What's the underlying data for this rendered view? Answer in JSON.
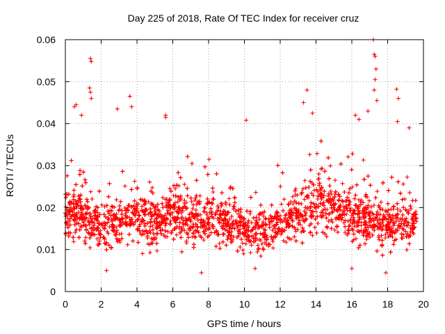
{
  "chart_data": {
    "type": "scatter",
    "title": "Day 225 of 2018, Rate Of TEC Index for receiver cruz",
    "xlabel": "GPS time / hours",
    "ylabel": "ROTI / TECUs",
    "xlim": [
      0,
      20
    ],
    "ylim": [
      0,
      0.06
    ],
    "x_ticks": [
      0,
      2,
      4,
      6,
      8,
      10,
      12,
      14,
      16,
      18,
      20
    ],
    "x_tick_labels": [
      "0",
      "2",
      "4",
      "6",
      "8",
      "10",
      "12",
      "14",
      "16",
      "18",
      "20"
    ],
    "y_ticks": [
      0,
      0.01,
      0.02,
      0.03,
      0.04,
      0.05,
      0.06
    ],
    "y_tick_labels": [
      "0",
      "0.01",
      "0.02",
      "0.03",
      "0.04",
      "0.05",
      "0.06"
    ],
    "grid": true,
    "marker": "+",
    "color": "#ff0000",
    "density_profile": {
      "description": "Approximate median ROTI and spread per hour (dense scatter of several thousand points)",
      "hours": [
        0,
        1,
        2,
        3,
        4,
        5,
        6,
        7,
        8,
        9,
        10,
        11,
        12,
        13,
        14,
        15,
        16,
        17,
        18,
        19,
        19.6
      ],
      "median": [
        0.019,
        0.019,
        0.015,
        0.017,
        0.017,
        0.017,
        0.018,
        0.017,
        0.017,
        0.017,
        0.015,
        0.014,
        0.016,
        0.019,
        0.021,
        0.02,
        0.018,
        0.017,
        0.016,
        0.016,
        0.017
      ],
      "spread": [
        0.005,
        0.005,
        0.004,
        0.005,
        0.005,
        0.005,
        0.005,
        0.005,
        0.005,
        0.005,
        0.004,
        0.004,
        0.004,
        0.005,
        0.006,
        0.005,
        0.005,
        0.005,
        0.004,
        0.004,
        0.004
      ]
    },
    "notable_points": [
      {
        "x": 0.5,
        "y": 0.044
      },
      {
        "x": 0.6,
        "y": 0.0445
      },
      {
        "x": 0.9,
        "y": 0.042
      },
      {
        "x": 1.4,
        "y": 0.0555
      },
      {
        "x": 1.45,
        "y": 0.0548
      },
      {
        "x": 1.35,
        "y": 0.0485
      },
      {
        "x": 1.4,
        "y": 0.0475
      },
      {
        "x": 1.45,
        "y": 0.046
      },
      {
        "x": 2.9,
        "y": 0.0435
      },
      {
        "x": 3.6,
        "y": 0.0465
      },
      {
        "x": 3.7,
        "y": 0.044
      },
      {
        "x": 5.6,
        "y": 0.042
      },
      {
        "x": 5.6,
        "y": 0.0415
      },
      {
        "x": 10.1,
        "y": 0.0408
      },
      {
        "x": 13.5,
        "y": 0.048
      },
      {
        "x": 13.3,
        "y": 0.045
      },
      {
        "x": 13.8,
        "y": 0.0425
      },
      {
        "x": 16.2,
        "y": 0.042
      },
      {
        "x": 16.4,
        "y": 0.041
      },
      {
        "x": 16.9,
        "y": 0.043
      },
      {
        "x": 17.2,
        "y": 0.06
      },
      {
        "x": 17.25,
        "y": 0.0565
      },
      {
        "x": 17.3,
        "y": 0.056
      },
      {
        "x": 17.35,
        "y": 0.053
      },
      {
        "x": 17.3,
        "y": 0.0505
      },
      {
        "x": 17.25,
        "y": 0.048
      },
      {
        "x": 17.4,
        "y": 0.0455
      },
      {
        "x": 18.5,
        "y": 0.0482
      },
      {
        "x": 18.6,
        "y": 0.046
      },
      {
        "x": 18.55,
        "y": 0.0405
      },
      {
        "x": 19.2,
        "y": 0.039
      },
      {
        "x": 16.0,
        "y": 0.0055
      },
      {
        "x": 17.9,
        "y": 0.0045
      },
      {
        "x": 2.3,
        "y": 0.005
      },
      {
        "x": 7.6,
        "y": 0.0045
      },
      {
        "x": 10.6,
        "y": 0.0055
      }
    ]
  }
}
